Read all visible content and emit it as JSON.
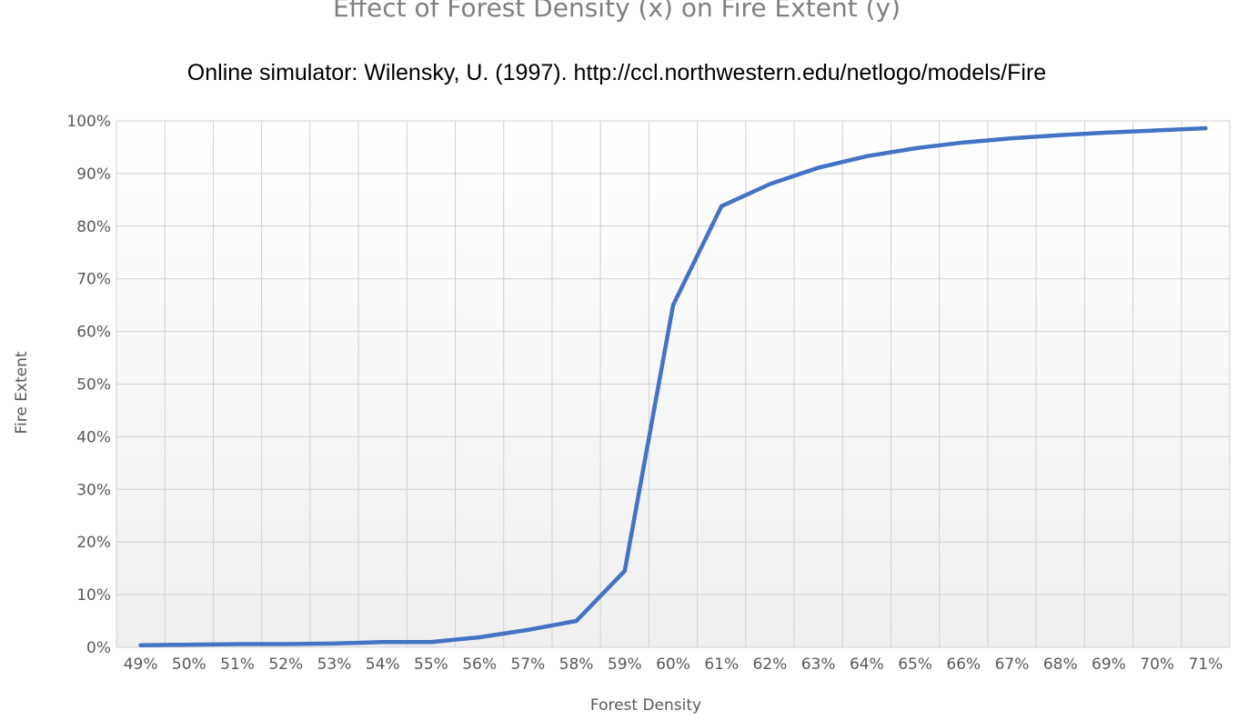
{
  "chart_data": {
    "type": "line",
    "title": "Effect of Forest Density (x) on Fire Extent (y)",
    "subtitle": "Online simulator: Wilensky, U. (1997). http://ccl.northwestern.edu/netlogo/models/Fire",
    "xlabel": "Forest Density",
    "ylabel": "Fire Extent",
    "categories": [
      "49%",
      "50%",
      "51%",
      "52%",
      "53%",
      "54%",
      "55%",
      "56%",
      "57%",
      "58%",
      "59%",
      "60%",
      "61%",
      "62%",
      "63%",
      "64%",
      "65%",
      "66%",
      "67%",
      "68%",
      "69%",
      "70%",
      "71%"
    ],
    "y_ticks": [
      "0%",
      "10%",
      "20%",
      "30%",
      "40%",
      "50%",
      "60%",
      "70%",
      "80%",
      "90%",
      "100%"
    ],
    "ylim": [
      0,
      100
    ],
    "grid": true,
    "legend": "none",
    "series": [
      {
        "values": [
          0.4,
          0.5,
          0.6,
          0.6,
          0.7,
          1.0,
          1.0,
          1.9,
          3.3,
          5.0,
          14.5,
          65.0,
          83.8,
          88.0,
          91.1,
          93.3,
          94.8,
          95.9,
          96.7,
          97.3,
          97.8,
          98.2,
          98.6
        ],
        "color": "#4472c4"
      }
    ]
  }
}
